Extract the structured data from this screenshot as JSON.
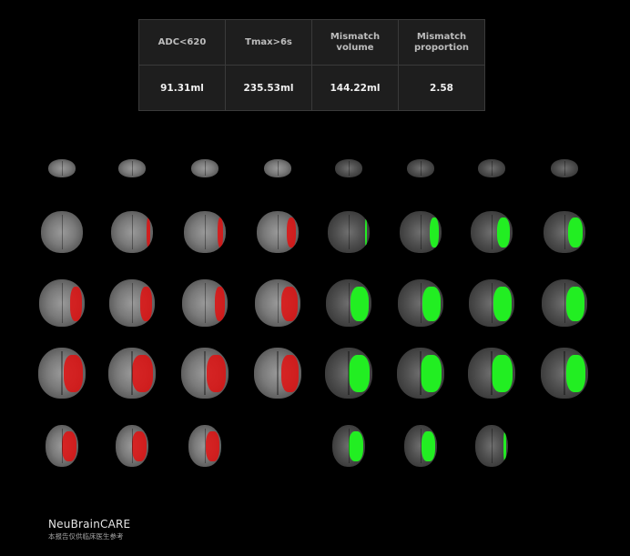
{
  "table": {
    "headers": [
      "ADC<620",
      "Tmax>6s",
      "Mismatch volume",
      "Mismatch proportion"
    ],
    "values": [
      "91.31ml",
      "235.53ml",
      "144.22ml",
      "2.58"
    ]
  },
  "colors": {
    "adc_lesion": "#e01010",
    "tmax_lesion": "#22ee22",
    "background": "#000000"
  },
  "images": {
    "adc_rows": [
      [
        0,
        0,
        0,
        0
      ],
      [
        0,
        0.1,
        0.15,
        0.25
      ],
      [
        0.3,
        0.3,
        0.25,
        0.4
      ],
      [
        0.45,
        0.5,
        0.45,
        0.4
      ],
      [
        0.5,
        0.5,
        0.45
      ]
    ],
    "tmax_rows": [
      [
        0,
        0,
        0,
        0
      ],
      [
        0.05,
        0.25,
        0.35,
        0.4
      ],
      [
        0.45,
        0.45,
        0.45,
        0.45
      ],
      [
        0.5,
        0.5,
        0.48,
        0.45
      ],
      [
        0.5,
        0.45,
        0.1
      ]
    ]
  },
  "footer": {
    "brand": "NeuBrainCARE",
    "disclaimer": "本报告仅供临床医生参考"
  }
}
